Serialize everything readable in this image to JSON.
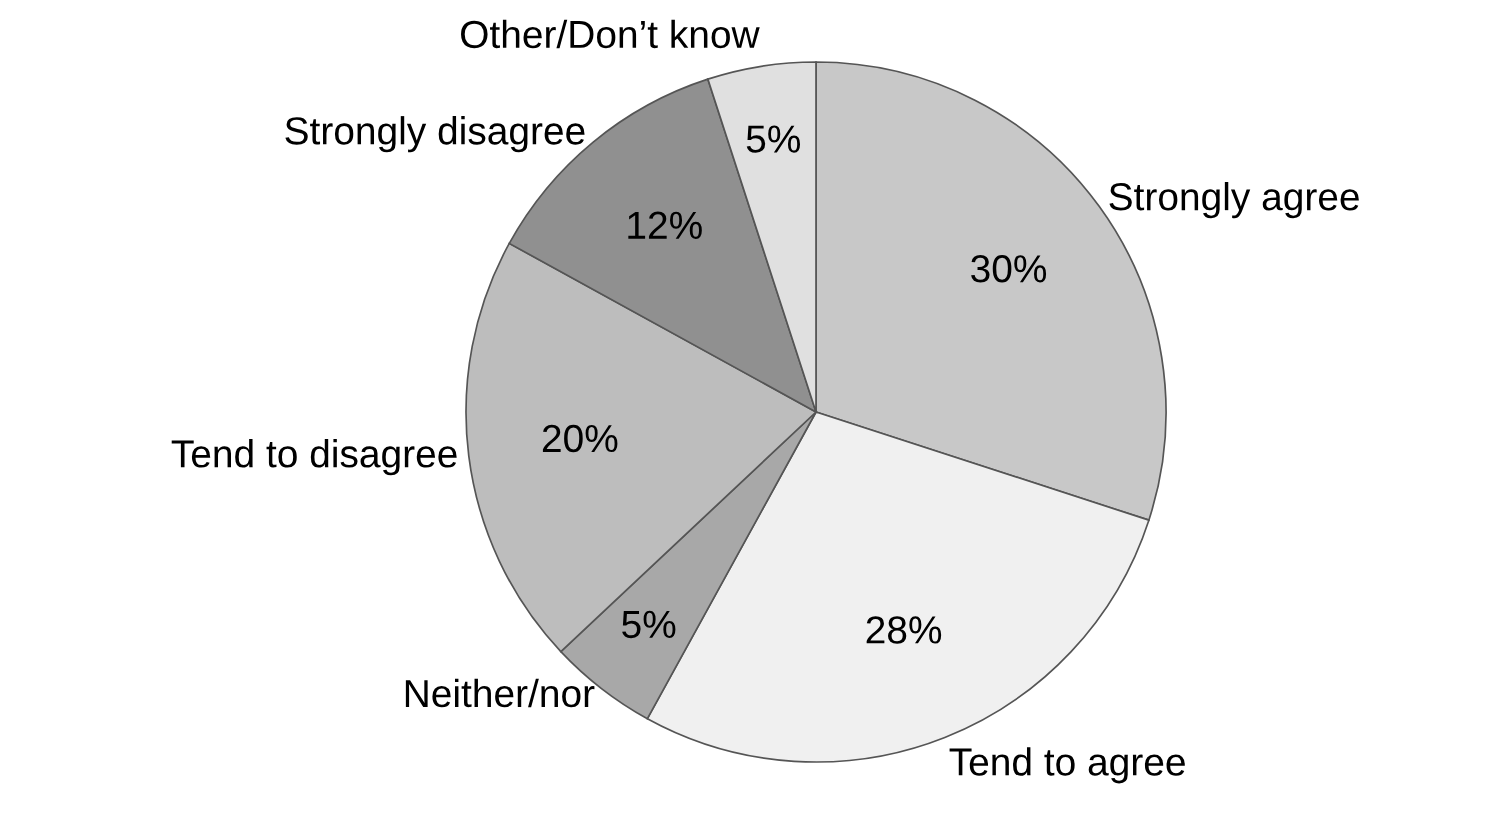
{
  "chart_data": {
    "type": "pie",
    "categories": [
      "Strongly agree",
      "Tend to agree",
      "Neither/nor",
      "Tend to disagree",
      "Strongly disagree",
      "Other/Don’t know"
    ],
    "values": [
      30,
      28,
      5,
      20,
      12,
      5
    ],
    "colors": [
      "#c8c8c8",
      "#f0f0f0",
      "#a8a8a8",
      "#bdbdbd",
      "#909090",
      "#e0e0e0"
    ],
    "value_labels": [
      "30%",
      "28%",
      "5%",
      "20%",
      "12%",
      "5%"
    ]
  }
}
